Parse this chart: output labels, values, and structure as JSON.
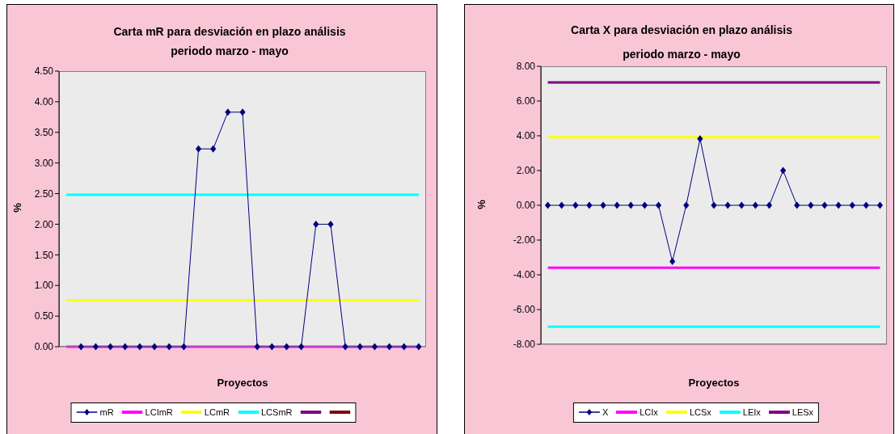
{
  "chart_data": [
    {
      "type": "line",
      "title": "Carta mR para desviación en plazo análisis",
      "subtitle": "periodo marzo - mayo",
      "xlabel": "Proyectos",
      "ylabel": "%",
      "categories": [
        null,
        null,
        null,
        null,
        null,
        null,
        null,
        null,
        null,
        null,
        null,
        null,
        null,
        null,
        null,
        null,
        null,
        null,
        null,
        null,
        null,
        null,
        null,
        null,
        null
      ],
      "ylim": [
        0,
        4.5
      ],
      "yticks": [
        {
          "value": 0,
          "label": "0.00"
        },
        {
          "value": 0.5,
          "label": "0.50"
        },
        {
          "value": 1,
          "label": "1.00"
        },
        {
          "value": 1.5,
          "label": "1.50"
        },
        {
          "value": 2,
          "label": "2.00"
        },
        {
          "value": 2.5,
          "label": "2.50"
        },
        {
          "value": 3,
          "label": "3.00"
        },
        {
          "value": 3.5,
          "label": "3.50"
        },
        {
          "value": 4,
          "label": "4.00"
        },
        {
          "value": 4.5,
          "label": "4.50"
        }
      ],
      "grid": false,
      "legend": "bottom",
      "marker": "diamond",
      "series": [
        {
          "name": "mR",
          "color": "#000080",
          "values": [
            null,
            0,
            0,
            0,
            0,
            0,
            0,
            0,
            0,
            3.23,
            3.23,
            3.83,
            3.83,
            0,
            0,
            0,
            0,
            2,
            2,
            0,
            0,
            0,
            0,
            0,
            0
          ]
        },
        {
          "name": "LCImR",
          "color": "#ff00ff",
          "marker": "none",
          "values": [
            0,
            0,
            0,
            0,
            0,
            0,
            0,
            0,
            0,
            0,
            0,
            0,
            0,
            0,
            0,
            0,
            0,
            0,
            0,
            0,
            0,
            0,
            0,
            0,
            0
          ]
        },
        {
          "name": "LCmR",
          "color": "#ffff00",
          "marker": "none",
          "values": [
            0.76,
            0.76,
            0.76,
            0.76,
            0.76,
            0.76,
            0.76,
            0.76,
            0.76,
            0.76,
            0.76,
            0.76,
            0.76,
            0.76,
            0.76,
            0.76,
            0.76,
            0.76,
            0.76,
            0.76,
            0.76,
            0.76,
            0.76,
            0.76,
            0.76
          ]
        },
        {
          "name": "LCSmR",
          "color": "#00ffff",
          "marker": "none",
          "values": [
            2.48,
            2.48,
            2.48,
            2.48,
            2.48,
            2.48,
            2.48,
            2.48,
            2.48,
            2.48,
            2.48,
            2.48,
            2.48,
            2.48,
            2.48,
            2.48,
            2.48,
            2.48,
            2.48,
            2.48,
            2.48,
            2.48,
            2.48,
            2.48,
            2.48
          ]
        },
        {
          "color": "#800080",
          "marker": "none",
          "values": [
            null,
            null,
            null,
            null,
            null,
            null,
            null,
            null,
            null,
            null,
            null,
            null,
            null,
            null,
            null,
            null,
            null,
            null,
            null,
            null,
            null,
            null,
            null,
            null,
            null
          ]
        },
        {
          "color": "#800000",
          "marker": "none",
          "values": [
            null,
            null,
            null,
            null,
            null,
            null,
            null,
            null,
            null,
            null,
            null,
            null,
            null,
            null,
            null,
            null,
            null,
            null,
            null,
            null,
            null,
            null,
            null,
            null,
            null
          ]
        }
      ]
    },
    {
      "type": "line",
      "title": "Carta X para desviación en plazo análisis",
      "subtitle": "periodo marzo - mayo",
      "xlabel": "Proyectos",
      "ylabel": "%",
      "categories": [
        null,
        null,
        null,
        null,
        null,
        null,
        null,
        null,
        null,
        null,
        null,
        null,
        null,
        null,
        null,
        null,
        null,
        null,
        null,
        null,
        null,
        null,
        null,
        null,
        null
      ],
      "ylim": [
        -8,
        8
      ],
      "yticks": [
        {
          "value": -8,
          "label": "-8.00"
        },
        {
          "value": -6,
          "label": "-6.00"
        },
        {
          "value": -4,
          "label": "-4.00"
        },
        {
          "value": -2,
          "label": "-2.00"
        },
        {
          "value": 0,
          "label": "0.00"
        },
        {
          "value": 2,
          "label": "2.00"
        },
        {
          "value": 4,
          "label": "4.00"
        },
        {
          "value": 6,
          "label": "6.00"
        },
        {
          "value": 8,
          "label": "8.00"
        }
      ],
      "grid": false,
      "legend": "bottom",
      "marker": "diamond",
      "series": [
        {
          "name": "X",
          "color": "#000080",
          "values": [
            0,
            0,
            0,
            0,
            0,
            0,
            0,
            0,
            0,
            -3.23,
            0,
            3.83,
            0,
            0,
            0,
            0,
            0,
            2,
            0,
            0,
            0,
            0,
            0,
            0,
            0
          ]
        },
        {
          "name": "LCIx",
          "color": "#ff00ff",
          "marker": "none",
          "values": [
            -3.59,
            -3.59,
            -3.59,
            -3.59,
            -3.59,
            -3.59,
            -3.59,
            -3.59,
            -3.59,
            -3.59,
            -3.59,
            -3.59,
            -3.59,
            -3.59,
            -3.59,
            -3.59,
            -3.59,
            -3.59,
            -3.59,
            -3.59,
            -3.59,
            -3.59,
            -3.59,
            -3.59,
            -3.59
          ]
        },
        {
          "name": "LCSx",
          "color": "#ffff00",
          "marker": "none",
          "values": [
            3.92,
            3.92,
            3.92,
            3.92,
            3.92,
            3.92,
            3.92,
            3.92,
            3.92,
            3.92,
            3.92,
            3.92,
            3.92,
            3.92,
            3.92,
            3.92,
            3.92,
            3.92,
            3.92,
            3.92,
            3.92,
            3.92,
            3.92,
            3.92,
            3.92
          ]
        },
        {
          "name": "LEIx",
          "color": "#00ffff",
          "marker": "none",
          "values": [
            -6.99,
            -6.99,
            -6.99,
            -6.99,
            -6.99,
            -6.99,
            -6.99,
            -6.99,
            -6.99,
            -6.99,
            -6.99,
            -6.99,
            -6.99,
            -6.99,
            -6.99,
            -6.99,
            -6.99,
            -6.99,
            -6.99,
            -6.99,
            -6.99,
            -6.99,
            -6.99,
            -6.99,
            -6.99
          ]
        },
        {
          "name": "LESx",
          "color": "#800080",
          "marker": "none",
          "values": [
            7.07,
            7.07,
            7.07,
            7.07,
            7.07,
            7.07,
            7.07,
            7.07,
            7.07,
            7.07,
            7.07,
            7.07,
            7.07,
            7.07,
            7.07,
            7.07,
            7.07,
            7.07,
            7.07,
            7.07,
            7.07,
            7.07,
            7.07,
            7.07,
            7.07
          ]
        }
      ]
    }
  ]
}
